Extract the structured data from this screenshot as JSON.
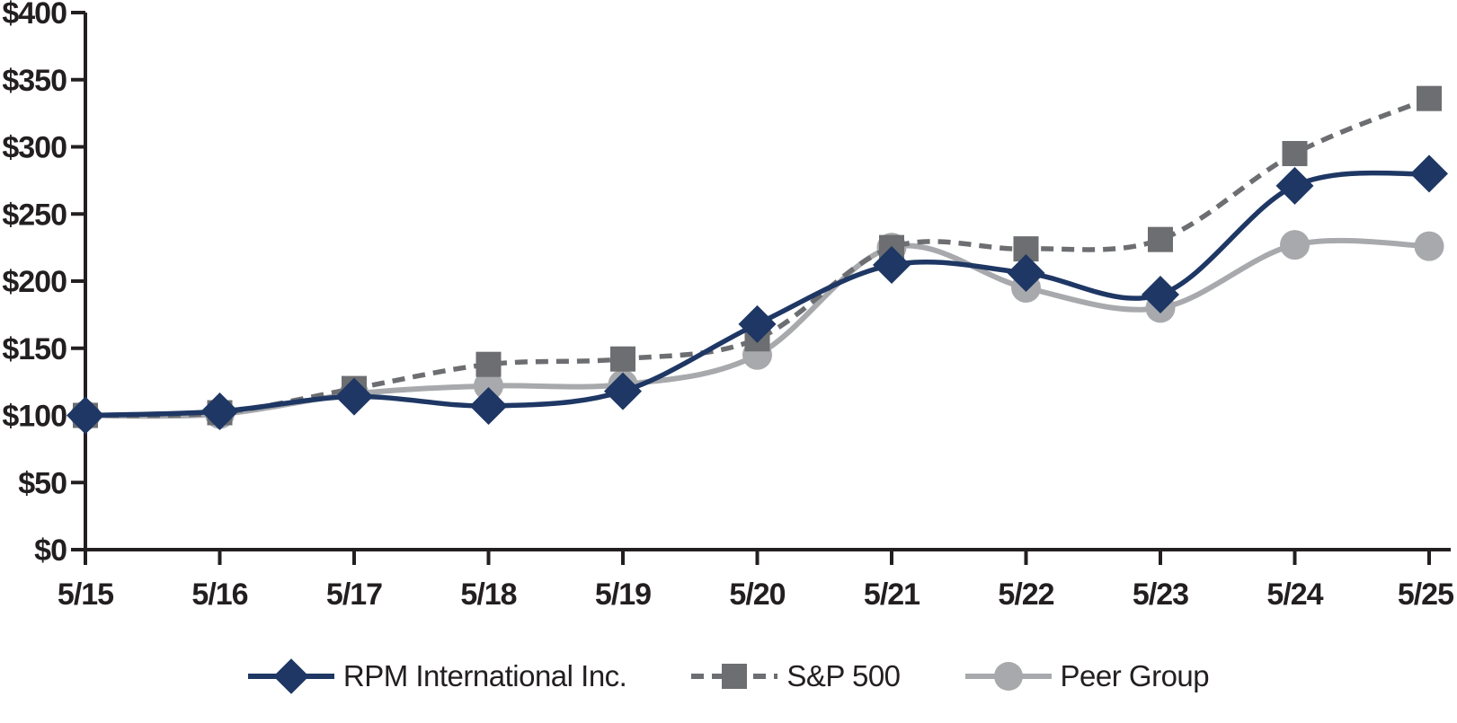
{
  "chart_data": {
    "type": "line",
    "title": "",
    "xlabel": "",
    "ylabel": "",
    "categories": [
      "5/15",
      "5/16",
      "5/17",
      "5/18",
      "5/19",
      "5/20",
      "5/21",
      "5/22",
      "5/23",
      "5/24",
      "5/25"
    ],
    "series": [
      {
        "name": "RPM International Inc.",
        "values": [
          100,
          103,
          114,
          107,
          118,
          168,
          212,
          206,
          190,
          271,
          280
        ],
        "color": "#1e3764",
        "line_style": "solid",
        "marker": "diamond"
      },
      {
        "name": "S&P 500",
        "values": [
          100,
          102,
          120,
          138,
          142,
          157,
          225,
          224,
          231,
          295,
          336
        ],
        "color": "#6d6e71",
        "line_style": "dashed",
        "marker": "square"
      },
      {
        "name": "Peer Group",
        "values": [
          100,
          101,
          116,
          122,
          123,
          145,
          225,
          195,
          180,
          227,
          226
        ],
        "color": "#a7a9ac",
        "line_style": "solid",
        "marker": "circle"
      }
    ],
    "ylim": [
      0,
      400
    ],
    "ytick_step": 50,
    "ytick_labels": [
      "$0",
      "$50",
      "$100",
      "$150",
      "$200",
      "$250",
      "$300",
      "$350",
      "$400"
    ],
    "grid": false,
    "smoothed_lines": true,
    "legend_position": "bottom"
  },
  "style": {
    "axis_color": "#231f20",
    "text_color": "#231f20",
    "background": "#ffffff"
  },
  "legend": {
    "items": [
      {
        "label": "RPM International Inc."
      },
      {
        "label": "S&P 500"
      },
      {
        "label": "Peer Group"
      }
    ]
  }
}
